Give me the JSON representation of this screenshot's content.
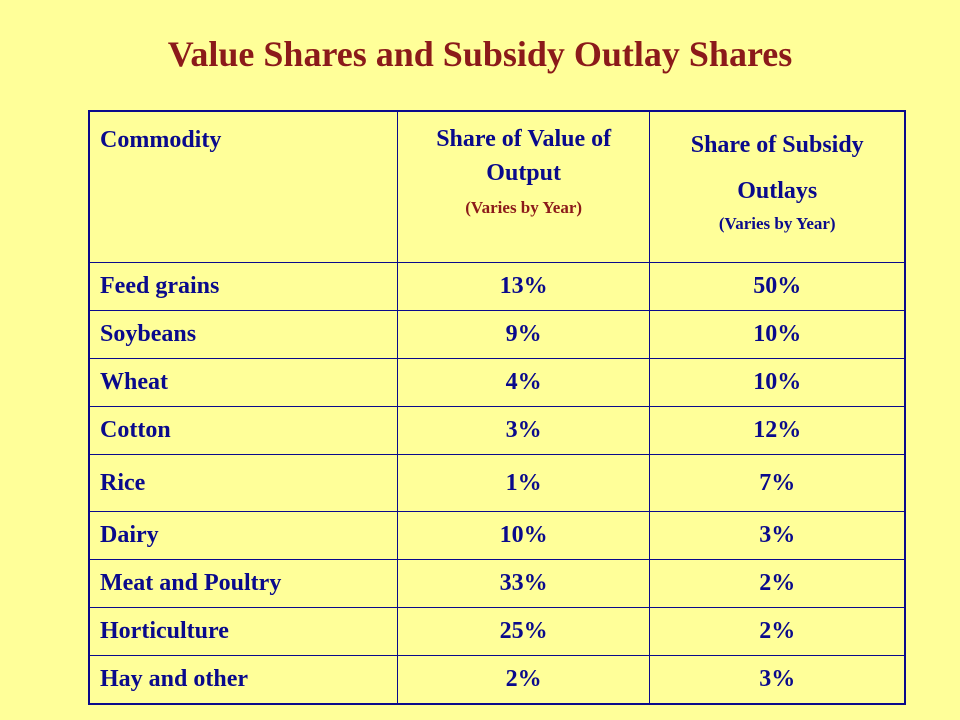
{
  "title": "Value Shares and Subsidy Outlay Shares",
  "columns": {
    "commodity": "Commodity",
    "value_share": "Share of Value of Output",
    "value_note": "(Varies by Year)",
    "subsidy_share": "Share of Subsidy Outlays",
    "subsidy_note": "(Varies by Year)"
  },
  "rows": [
    {
      "commodity": "Feed grains",
      "value": "13%",
      "subsidy": "50%"
    },
    {
      "commodity": "Soybeans",
      "value": "9%",
      "subsidy": "10%"
    },
    {
      "commodity": "Wheat",
      "value": "4%",
      "subsidy": "10%"
    },
    {
      "commodity": "Cotton",
      "value": "3%",
      "subsidy": "12%"
    },
    {
      "commodity": "Rice",
      "value": "1%",
      "subsidy": "7%"
    },
    {
      "commodity": "Dairy",
      "value": "10%",
      "subsidy": "3%"
    },
    {
      "commodity": "Meat and Poultry",
      "value": "33%",
      "subsidy": "2%"
    },
    {
      "commodity": "Horticulture",
      "value": "25%",
      "subsidy": "2%"
    },
    {
      "commodity": "Hay and other",
      "value": "2%",
      "subsidy": "3%"
    }
  ],
  "colors": {
    "background": "#ffff99",
    "title": "#8b1a1a",
    "table_text": "#0a0a8c",
    "value_header": "#8b1a1a",
    "border": "#0a0a8c"
  }
}
